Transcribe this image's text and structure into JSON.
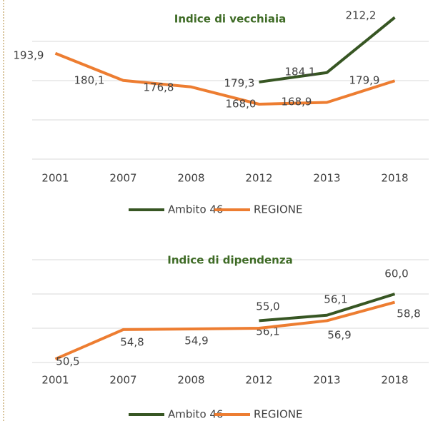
{
  "chart_data": [
    {
      "type": "line",
      "title": "Indice di vecchiaia",
      "categories": [
        "2001",
        "2007",
        "2008",
        "2012",
        "2013",
        "2018"
      ],
      "series": [
        {
          "name": "Ambito 46",
          "color": "#375623",
          "values": [
            null,
            null,
            null,
            179.3,
            184.1,
            212.2
          ],
          "value_labels": [
            null,
            null,
            null,
            "179,3",
            "184,1",
            "212,2"
          ]
        },
        {
          "name": "REGIONE",
          "color": "#ed7d31",
          "values": [
            193.9,
            180.1,
            176.8,
            168.0,
            168.9,
            179.9
          ],
          "value_labels": [
            "193,9",
            "180,1",
            "176,8",
            "168,0",
            "168,9",
            "179,9"
          ]
        }
      ],
      "ylim": [
        140,
        220
      ],
      "yticks": [
        140,
        160,
        180,
        200
      ],
      "grid": true,
      "legend": "bottom"
    },
    {
      "type": "line",
      "title": "Indice di dipendenza",
      "categories": [
        "2001",
        "2007",
        "2008",
        "2012",
        "2013",
        "2018"
      ],
      "series": [
        {
          "name": "Ambito 46",
          "color": "#375623",
          "values": [
            null,
            null,
            null,
            56.1,
            56.9,
            60.0
          ],
          "value_labels": [
            null,
            null,
            null,
            "56,1",
            "56,9",
            "60,0"
          ]
        },
        {
          "name": "REGIONE",
          "color": "#ed7d31",
          "values": [
            50.5,
            54.8,
            54.9,
            55.0,
            56.1,
            58.8
          ],
          "value_labels": [
            "50,5",
            "54,8",
            "54,9",
            "55,0",
            "56,1",
            "58,8"
          ]
        }
      ],
      "ylim": [
        50,
        65
      ],
      "yticks": [
        50,
        55,
        60,
        65
      ],
      "grid": true,
      "legend": "bottom"
    }
  ]
}
